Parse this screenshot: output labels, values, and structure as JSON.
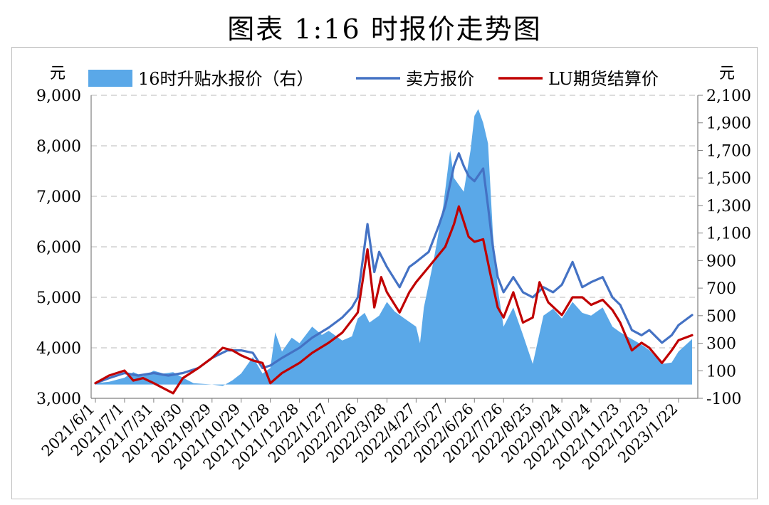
{
  "title": "图表 1:16 时报价走势图",
  "chart_data": {
    "type": "line",
    "left_unit": "元",
    "right_unit": "元",
    "left_axis": {
      "min": 3000,
      "max": 9000,
      "ticks": [
        "3,000",
        "4,000",
        "5,000",
        "6,000",
        "7,000",
        "8,000",
        "9,000"
      ]
    },
    "right_axis": {
      "min": -100,
      "max": 2100,
      "ticks": [
        "-100",
        "100",
        "300",
        "500",
        "700",
        "900",
        "1,100",
        "1,300",
        "1,500",
        "1,700",
        "1,900",
        "2,100"
      ]
    },
    "x_ticks": [
      "2021/6/1",
      "2021/7/1",
      "2021/7/31",
      "2021/8/30",
      "2021/9/29",
      "2021/10/29",
      "2021/11/28",
      "2021/12/28",
      "2022/1/27",
      "2022/2/26",
      "2022/3/28",
      "2022/4/27",
      "2022/5/27",
      "2022/6/26",
      "2022/7/26",
      "2022/8/25",
      "2022/9/24",
      "2022/10/24",
      "2022/11/23",
      "2022/12/23",
      "2023/1/22"
    ],
    "x_range": [
      "2021/6/1",
      "2023/2/5"
    ],
    "grid": "horizontal dashed",
    "legend_position": "top",
    "series": [
      {
        "name": "16时升贴水报价（右）",
        "type": "area",
        "axis": "right",
        "color": "#5aa8e8",
        "points": [
          [
            "2021/6/1",
            10
          ],
          [
            "2021/6/15",
            20
          ],
          [
            "2021/7/1",
            50
          ],
          [
            "2021/7/10",
            90
          ],
          [
            "2021/7/20",
            60
          ],
          [
            "2021/7/31",
            100
          ],
          [
            "2021/8/10",
            80
          ],
          [
            "2021/8/20",
            90
          ],
          [
            "2021/8/30",
            50
          ],
          [
            "2021/9/10",
            10
          ],
          [
            "2021/9/20",
            5
          ],
          [
            "2021/9/29",
            0
          ],
          [
            "2021/10/10",
            -10
          ],
          [
            "2021/10/20",
            30
          ],
          [
            "2021/10/29",
            80
          ],
          [
            "2021/11/10",
            200
          ],
          [
            "2021/11/20",
            80
          ],
          [
            "2021/11/28",
            120
          ],
          [
            "2021/12/3",
            380
          ],
          [
            "2021/12/10",
            240
          ],
          [
            "2021/12/20",
            340
          ],
          [
            "2021/12/28",
            300
          ],
          [
            "2022/1/10",
            420
          ],
          [
            "2022/1/20",
            360
          ],
          [
            "2022/1/27",
            390
          ],
          [
            "2022/2/10",
            320
          ],
          [
            "2022/2/20",
            350
          ],
          [
            "2022/2/26",
            480
          ],
          [
            "2022/3/5",
            520
          ],
          [
            "2022/3/10",
            450
          ],
          [
            "2022/3/20",
            500
          ],
          [
            "2022/3/28",
            600
          ],
          [
            "2022/4/5",
            530
          ],
          [
            "2022/4/15",
            480
          ],
          [
            "2022/4/27",
            420
          ],
          [
            "2022/5/1",
            300
          ],
          [
            "2022/5/5",
            560
          ],
          [
            "2022/5/15",
            900
          ],
          [
            "2022/5/25",
            1300
          ],
          [
            "2022/6/1",
            1700
          ],
          [
            "2022/6/5",
            1500
          ],
          [
            "2022/6/10",
            1450
          ],
          [
            "2022/6/15",
            1400
          ],
          [
            "2022/6/22",
            1700
          ],
          [
            "2022/6/26",
            1950
          ],
          [
            "2022/6/30",
            2000
          ],
          [
            "2022/7/5",
            1900
          ],
          [
            "2022/7/10",
            1750
          ],
          [
            "2022/7/15",
            1100
          ],
          [
            "2022/7/20",
            700
          ],
          [
            "2022/7/26",
            420
          ],
          [
            "2022/8/5",
            560
          ],
          [
            "2022/8/15",
            360
          ],
          [
            "2022/8/25",
            150
          ],
          [
            "2022/9/5",
            500
          ],
          [
            "2022/9/15",
            550
          ],
          [
            "2022/9/24",
            480
          ],
          [
            "2022/10/5",
            600
          ],
          [
            "2022/10/15",
            520
          ],
          [
            "2022/10/24",
            500
          ],
          [
            "2022/11/5",
            560
          ],
          [
            "2022/11/15",
            420
          ],
          [
            "2022/11/23",
            380
          ],
          [
            "2022/12/5",
            330
          ],
          [
            "2022/12/15",
            290
          ],
          [
            "2022/12/23",
            250
          ],
          [
            "2023/1/5",
            150
          ],
          [
            "2023/1/15",
            160
          ],
          [
            "2023/1/22",
            240
          ],
          [
            "2023/2/5",
            330
          ]
        ]
      },
      {
        "name": "卖方报价",
        "type": "line",
        "axis": "left",
        "color": "#4472c4",
        "points": [
          [
            "2021/6/1",
            3300
          ],
          [
            "2021/6/15",
            3400
          ],
          [
            "2021/7/1",
            3500
          ],
          [
            "2021/7/15",
            3450
          ],
          [
            "2021/7/31",
            3500
          ],
          [
            "2021/8/15",
            3450
          ],
          [
            "2021/8/30",
            3500
          ],
          [
            "2021/9/15",
            3600
          ],
          [
            "2021/9/29",
            3800
          ],
          [
            "2021/10/15",
            3950
          ],
          [
            "2021/10/29",
            3950
          ],
          [
            "2021/11/10",
            3900
          ],
          [
            "2021/11/20",
            3600
          ],
          [
            "2021/11/28",
            3650
          ],
          [
            "2021/12/10",
            3800
          ],
          [
            "2021/12/28",
            4000
          ],
          [
            "2022/1/10",
            4200
          ],
          [
            "2022/1/27",
            4400
          ],
          [
            "2022/2/10",
            4600
          ],
          [
            "2022/2/20",
            4800
          ],
          [
            "2022/2/26",
            5000
          ],
          [
            "2022/3/8",
            6450
          ],
          [
            "2022/3/15",
            5500
          ],
          [
            "2022/3/20",
            5900
          ],
          [
            "2022/3/28",
            5600
          ],
          [
            "2022/4/10",
            5200
          ],
          [
            "2022/4/20",
            5600
          ],
          [
            "2022/4/27",
            5700
          ],
          [
            "2022/5/10",
            5900
          ],
          [
            "2022/5/20",
            6400
          ],
          [
            "2022/5/27",
            6800
          ],
          [
            "2022/6/5",
            7600
          ],
          [
            "2022/6/10",
            7850
          ],
          [
            "2022/6/15",
            7600
          ],
          [
            "2022/6/20",
            7400
          ],
          [
            "2022/6/26",
            7300
          ],
          [
            "2022/7/5",
            7550
          ],
          [
            "2022/7/10",
            6800
          ],
          [
            "2022/7/15",
            6000
          ],
          [
            "2022/7/20",
            5400
          ],
          [
            "2022/7/26",
            5100
          ],
          [
            "2022/8/5",
            5400
          ],
          [
            "2022/8/15",
            5100
          ],
          [
            "2022/8/25",
            5000
          ],
          [
            "2022/9/5",
            5200
          ],
          [
            "2022/9/15",
            5100
          ],
          [
            "2022/9/24",
            5250
          ],
          [
            "2022/10/5",
            5700
          ],
          [
            "2022/10/15",
            5200
          ],
          [
            "2022/10/24",
            5300
          ],
          [
            "2022/11/5",
            5400
          ],
          [
            "2022/11/15",
            5000
          ],
          [
            "2022/11/23",
            4850
          ],
          [
            "2022/12/5",
            4350
          ],
          [
            "2022/12/15",
            4250
          ],
          [
            "2022/12/23",
            4350
          ],
          [
            "2023/1/5",
            4100
          ],
          [
            "2023/1/15",
            4250
          ],
          [
            "2023/1/22",
            4450
          ],
          [
            "2023/2/5",
            4650
          ]
        ]
      },
      {
        "name": "LU期货结算价",
        "type": "line",
        "axis": "left",
        "color": "#c00000",
        "points": [
          [
            "2021/6/1",
            3300
          ],
          [
            "2021/6/15",
            3450
          ],
          [
            "2021/7/1",
            3550
          ],
          [
            "2021/7/10",
            3350
          ],
          [
            "2021/7/20",
            3400
          ],
          [
            "2021/7/31",
            3300
          ],
          [
            "2021/8/10",
            3200
          ],
          [
            "2021/8/20",
            3100
          ],
          [
            "2021/8/30",
            3400
          ],
          [
            "2021/9/15",
            3600
          ],
          [
            "2021/9/29",
            3800
          ],
          [
            "2021/10/10",
            4000
          ],
          [
            "2021/10/20",
            3950
          ],
          [
            "2021/10/29",
            3850
          ],
          [
            "2021/11/10",
            3750
          ],
          [
            "2021/11/20",
            3700
          ],
          [
            "2021/11/28",
            3300
          ],
          [
            "2021/12/10",
            3500
          ],
          [
            "2021/12/28",
            3700
          ],
          [
            "2022/1/10",
            3900
          ],
          [
            "2022/1/27",
            4100
          ],
          [
            "2022/2/10",
            4300
          ],
          [
            "2022/2/26",
            4700
          ],
          [
            "2022/3/8",
            5950
          ],
          [
            "2022/3/15",
            4800
          ],
          [
            "2022/3/22",
            5400
          ],
          [
            "2022/3/28",
            5100
          ],
          [
            "2022/4/10",
            4700
          ],
          [
            "2022/4/20",
            5100
          ],
          [
            "2022/4/27",
            5300
          ],
          [
            "2022/5/10",
            5600
          ],
          [
            "2022/5/27",
            6000
          ],
          [
            "2022/6/5",
            6450
          ],
          [
            "2022/6/10",
            6800
          ],
          [
            "2022/6/15",
            6500
          ],
          [
            "2022/6/20",
            6200
          ],
          [
            "2022/6/26",
            6100
          ],
          [
            "2022/7/5",
            6150
          ],
          [
            "2022/7/12",
            5500
          ],
          [
            "2022/7/20",
            4800
          ],
          [
            "2022/7/26",
            4600
          ],
          [
            "2022/8/5",
            5100
          ],
          [
            "2022/8/15",
            4500
          ],
          [
            "2022/8/25",
            4600
          ],
          [
            "2022/9/1",
            5300
          ],
          [
            "2022/9/10",
            4900
          ],
          [
            "2022/9/24",
            4650
          ],
          [
            "2022/10/5",
            5000
          ],
          [
            "2022/10/15",
            5000
          ],
          [
            "2022/10/24",
            4850
          ],
          [
            "2022/11/5",
            4950
          ],
          [
            "2022/11/15",
            4750
          ],
          [
            "2022/11/23",
            4500
          ],
          [
            "2022/12/5",
            3950
          ],
          [
            "2022/12/15",
            4100
          ],
          [
            "2022/12/23",
            4000
          ],
          [
            "2023/1/5",
            3700
          ],
          [
            "2023/1/15",
            3950
          ],
          [
            "2023/1/22",
            4150
          ],
          [
            "2023/2/5",
            4250
          ]
        ]
      }
    ]
  }
}
